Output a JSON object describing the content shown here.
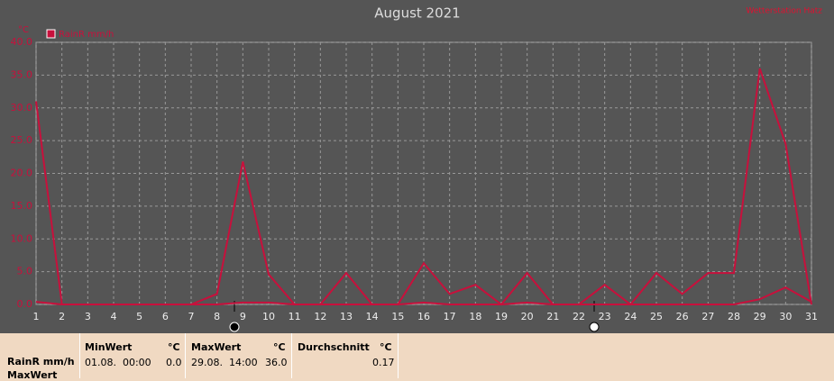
{
  "chart_data": {
    "type": "line",
    "title": "August 2021",
    "station": "Wetterstation Hatz",
    "y_unit": "°C",
    "categories": [
      "1",
      "2",
      "3",
      "4",
      "5",
      "6",
      "7",
      "8",
      "9",
      "10",
      "11",
      "12",
      "13",
      "14",
      "15",
      "16",
      "17",
      "18",
      "19",
      "20",
      "21",
      "22",
      "23",
      "24",
      "25",
      "26",
      "27",
      "28",
      "29",
      "30",
      "31"
    ],
    "series": [
      {
        "name": "RainR mm/h",
        "color": "#c8103c",
        "values": [
          31.0,
          0,
          0,
          0,
          0,
          0,
          0,
          1.6,
          21.8,
          4.6,
          0,
          0,
          4.8,
          0,
          0,
          6.3,
          1.6,
          3.0,
          0,
          4.8,
          0,
          0,
          3.0,
          0,
          4.8,
          1.6,
          4.8,
          4.8,
          36.0,
          24.5,
          0
        ]
      },
      {
        "color": "#c8103c",
        "values": [
          0.4,
          0,
          0,
          0,
          0,
          0,
          0,
          0,
          0.3,
          0.3,
          0,
          0,
          0,
          0,
          0,
          0.3,
          0,
          0,
          0,
          0.3,
          0,
          0,
          0,
          0,
          0,
          0,
          0,
          0,
          0.8,
          2.6,
          0.4
        ]
      }
    ],
    "ylim": [
      0,
      40
    ],
    "yticks": [
      {
        "value": 0,
        "label": "0.0"
      },
      {
        "value": 5,
        "label": "5.0"
      },
      {
        "value": 10,
        "label": "10.0"
      },
      {
        "value": 15,
        "label": "15.0"
      },
      {
        "value": 20,
        "label": "20.0"
      },
      {
        "value": 25,
        "label": "25.0"
      },
      {
        "value": 30,
        "label": "30.0"
      },
      {
        "value": 35,
        "label": "35.0"
      },
      {
        "value": 40,
        "label": "40.0"
      }
    ],
    "grid": true
  },
  "table": {
    "row_labels": [
      "RainR mm/h",
      "MaxWert"
    ],
    "columns": [
      {
        "header": "MinWert",
        "unit": "°C",
        "time": "01.08.  00:00",
        "value": "0.0"
      },
      {
        "header": "MaxWert",
        "unit": "°C",
        "time": "29.08.  14:00",
        "value": "36.0"
      },
      {
        "header": "Durchschnitt",
        "unit": "°C",
        "value": "0.17"
      }
    ]
  }
}
